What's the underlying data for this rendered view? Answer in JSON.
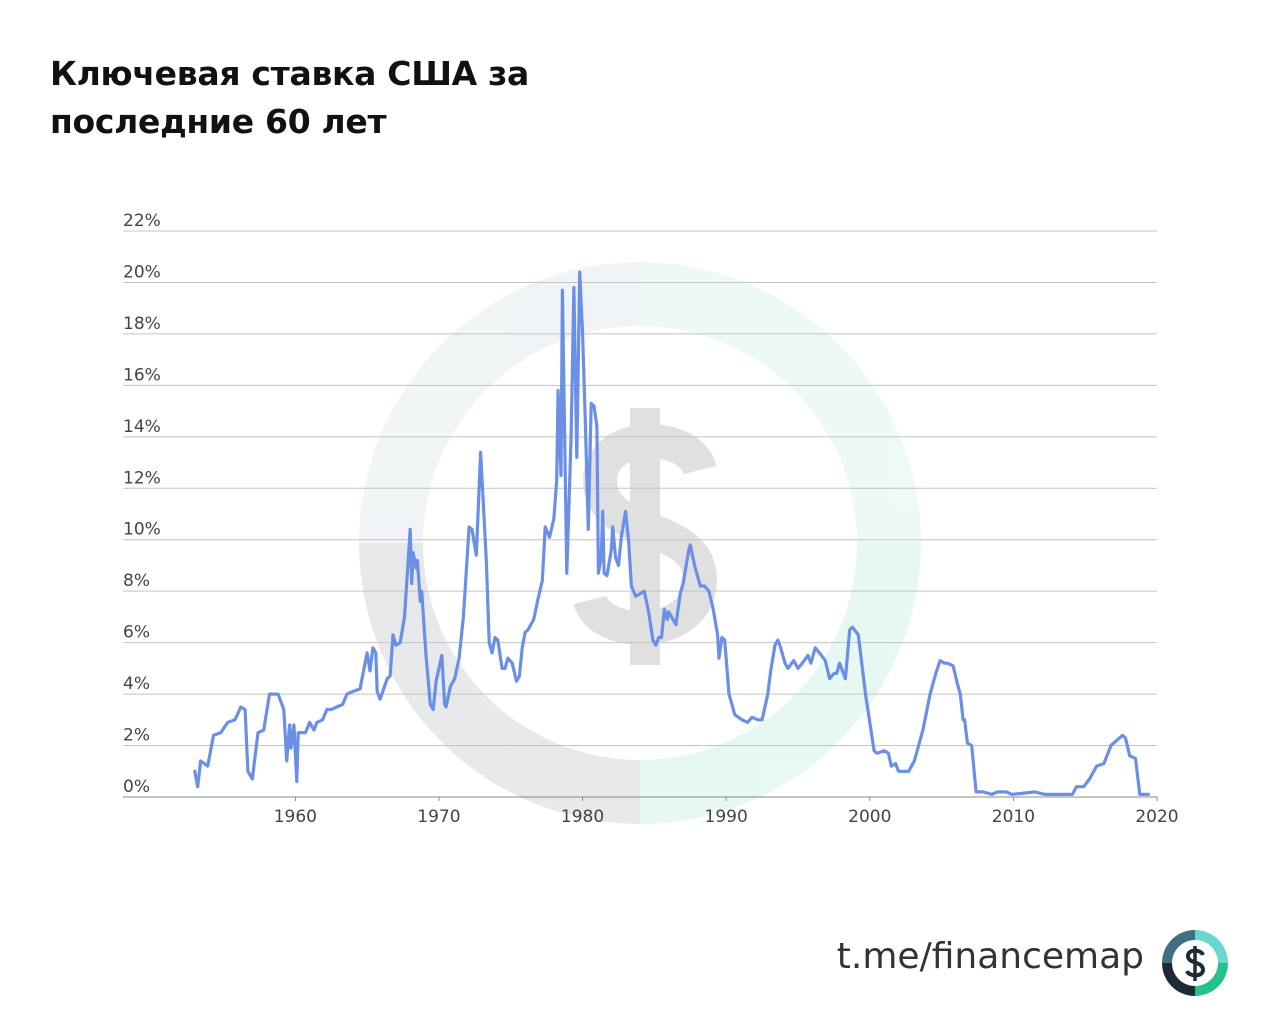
{
  "chart_data": {
    "type": "line",
    "title": "Ключевая ставка США за последние 60 лет",
    "xlim": [
      1948,
      2020
    ],
    "xticks": [
      1960,
      1970,
      1980,
      1990,
      2000,
      2010,
      2020
    ],
    "ylim": [
      0,
      22
    ],
    "yticks": [
      {
        "value": 0,
        "label": "0%"
      },
      {
        "value": 2,
        "label": "2%"
      },
      {
        "value": 4,
        "label": "4%"
      },
      {
        "value": 6,
        "label": "6%"
      },
      {
        "value": 8,
        "label": "8%"
      },
      {
        "value": 10,
        "label": "10%"
      },
      {
        "value": 12,
        "label": "12%"
      },
      {
        "value": 14,
        "label": "14%"
      },
      {
        "value": 16,
        "label": "16%"
      },
      {
        "value": 18,
        "label": "18%"
      },
      {
        "value": 20,
        "label": "20%"
      },
      {
        "value": 22,
        "label": "22%"
      }
    ],
    "grid": true,
    "series": [
      {
        "color": "#6b8fe6",
        "x": [
          1953.0,
          1953.2,
          1953.4,
          1953.9,
          1954.3,
          1954.8,
          1955.3,
          1955.8,
          1956.2,
          1956.5,
          1956.7,
          1957.0,
          1957.4,
          1957.8,
          1958.2,
          1958.8,
          1959.2,
          1959.4,
          1959.6,
          1959.7,
          1959.9,
          1960.1,
          1960.2,
          1960.7,
          1961.0,
          1961.3,
          1961.5,
          1961.9,
          1962.2,
          1962.5,
          1963.3,
          1963.6,
          1964.0,
          1964.5,
          1965.0,
          1965.2,
          1965.4,
          1965.6,
          1965.7,
          1965.9,
          1966.4,
          1966.6,
          1966.8,
          1967.0,
          1967.3,
          1967.6,
          1968.0,
          1968.1,
          1968.2,
          1968.4,
          1968.5,
          1968.7,
          1968.8,
          1969.1,
          1969.4,
          1969.6,
          1969.8,
          1970.2,
          1970.4,
          1970.5,
          1970.8,
          1971.1,
          1971.4,
          1971.7,
          1972.1,
          1972.3,
          1972.6,
          1972.9,
          1973.3,
          1973.5,
          1973.7,
          1973.9,
          1974.1,
          1974.4,
          1974.6,
          1974.8,
          1975.1,
          1975.4,
          1975.6,
          1975.8,
          1976.0,
          1976.2,
          1976.6,
          1976.9,
          1977.2,
          1977.4,
          1977.7,
          1978.0,
          1978.2,
          1978.3,
          1978.5,
          1978.6,
          1978.9,
          1979.2,
          1979.4,
          1979.6,
          1979.8,
          1980.0,
          1980.2,
          1980.4,
          1980.6,
          1980.8,
          1981.0,
          1981.1,
          1981.3,
          1981.4,
          1981.5,
          1981.7,
          1982.0,
          1982.1,
          1982.3,
          1982.5,
          1982.7,
          1983.0,
          1983.2,
          1983.4,
          1983.7,
          1984.0,
          1984.3,
          1984.6,
          1984.9,
          1985.1,
          1985.3,
          1985.5,
          1985.7,
          1985.9,
          1986.0,
          1986.3,
          1986.5,
          1986.8,
          1987.0,
          1987.4,
          1987.5,
          1987.8,
          1988.2,
          1988.5,
          1988.8,
          1989.1,
          1989.4,
          1989.5,
          1989.7,
          1989.9,
          1990.2,
          1990.6,
          1991.1,
          1991.5,
          1991.8,
          1992.2,
          1992.5,
          1992.9,
          1993.1,
          1993.4,
          1993.6,
          1993.8,
          1994.1,
          1994.3,
          1994.7,
          1995.0,
          1995.3,
          1995.7,
          1995.9,
          1996.2,
          1996.5,
          1996.9,
          1997.2,
          1997.5,
          1997.7,
          1997.9,
          1998.1,
          1998.3,
          1998.6,
          1998.8,
          1999.2,
          1999.7,
          2000.3,
          2000.5,
          2001.0,
          2001.3,
          2001.5,
          2001.8,
          2002.0,
          2002.7,
          2003.1,
          2003.7,
          2004.2,
          2004.6,
          2004.9,
          2005.2,
          2005.4,
          2005.8,
          2006.1,
          2006.3,
          2006.5,
          2006.6,
          2006.8,
          2007.1,
          2007.4,
          2007.9,
          2008.5,
          2008.9,
          2009.5,
          2009.9,
          2011.5,
          2012.2,
          2013.6,
          2014.1,
          2014.4,
          2014.9,
          2015.3,
          2015.8,
          2016.3,
          2016.8,
          2017.6,
          2017.8,
          2018.1,
          2018.5,
          2018.8,
          2019.4
        ],
        "values": [
          1.0,
          0.4,
          1.4,
          1.2,
          2.4,
          2.5,
          2.9,
          3.0,
          3.5,
          3.4,
          1.0,
          0.7,
          2.5,
          2.6,
          4.0,
          4.0,
          3.4,
          1.4,
          2.8,
          1.9,
          2.8,
          0.6,
          2.5,
          2.5,
          2.9,
          2.6,
          2.9,
          3.0,
          3.4,
          3.4,
          3.6,
          4.0,
          4.1,
          4.2,
          5.6,
          4.9,
          5.8,
          5.6,
          4.1,
          3.8,
          4.6,
          4.7,
          6.3,
          5.9,
          6.0,
          7.0,
          10.4,
          8.3,
          9.5,
          8.9,
          9.2,
          7.6,
          8.0,
          5.5,
          3.6,
          3.4,
          4.5,
          5.5,
          3.6,
          3.5,
          4.3,
          4.6,
          5.4,
          7.0,
          10.5,
          10.4,
          9.4,
          13.4,
          9.2,
          6.0,
          5.6,
          6.2,
          6.1,
          5.0,
          5.0,
          5.4,
          5.2,
          4.5,
          4.7,
          5.8,
          6.4,
          6.5,
          6.9,
          7.7,
          8.4,
          10.5,
          10.1,
          10.8,
          12.3,
          15.8,
          12.5,
          19.7,
          8.7,
          14.0,
          19.8,
          13.2,
          20.4,
          18.0,
          14.5,
          10.4,
          15.3,
          15.2,
          14.4,
          8.7,
          9.3,
          11.1,
          8.7,
          8.6,
          9.6,
          10.5,
          9.3,
          9.0,
          10.1,
          11.1,
          10.0,
          8.2,
          7.8,
          7.9,
          8.0,
          7.2,
          6.1,
          5.9,
          6.2,
          6.2,
          7.3,
          6.9,
          7.2,
          6.9,
          6.7,
          7.9,
          8.3,
          9.6,
          9.8,
          9.0,
          8.2,
          8.2,
          8.0,
          7.3,
          6.3,
          5.4,
          6.2,
          6.1,
          4.0,
          3.2,
          3.0,
          2.9,
          3.1,
          3.0,
          3.0,
          4.0,
          4.9,
          5.9,
          6.1,
          5.8,
          5.2,
          5.0,
          5.3,
          5.0,
          5.2,
          5.5,
          5.2,
          5.8,
          5.6,
          5.3,
          4.6,
          4.8,
          4.8,
          5.2,
          4.9,
          4.6,
          6.5,
          6.6,
          6.3,
          4.0,
          1.8,
          1.7,
          1.8,
          1.7,
          1.2,
          1.3,
          1.0,
          1.0,
          1.4,
          2.6,
          4.0,
          4.8,
          5.3,
          5.2,
          5.2,
          5.1,
          4.4,
          4.0,
          3.0,
          3.0,
          2.1,
          2.0,
          0.2,
          0.2,
          0.1,
          0.2,
          0.2,
          0.1,
          0.2,
          0.1,
          0.1,
          0.1,
          0.4,
          0.4,
          0.7,
          1.2,
          1.3,
          2.0,
          2.4,
          2.3,
          1.6,
          1.5,
          0.1,
          0.1
        ]
      }
    ]
  },
  "footer": "t.me/financemap"
}
